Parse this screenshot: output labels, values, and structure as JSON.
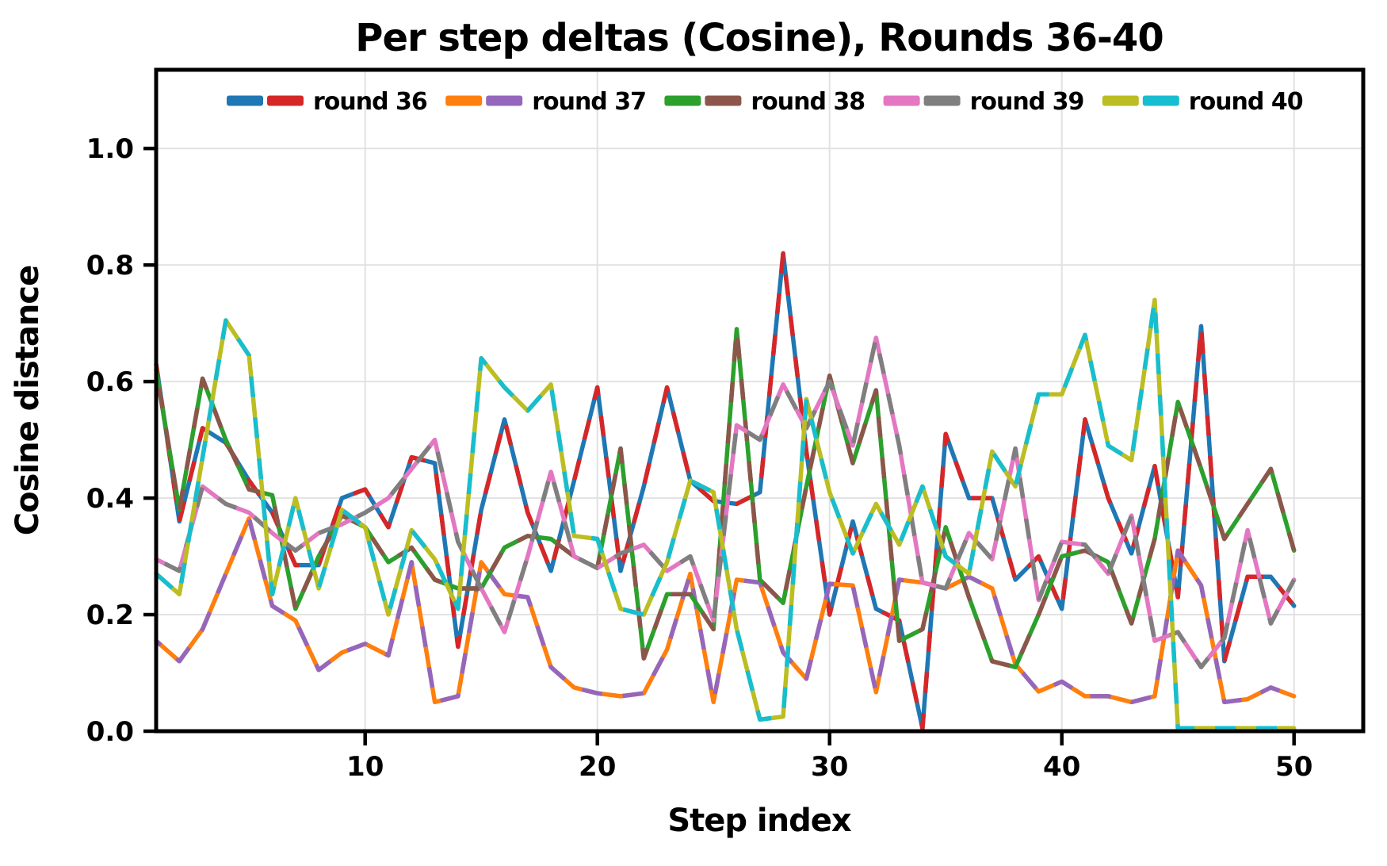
{
  "page": {
    "background_color": "#ffffff",
    "text_color": "#000000",
    "grid_color": "#e2e2e2",
    "spine_color": "#000000"
  },
  "chart_data": {
    "type": "line",
    "title": "Per step deltas (Cosine), Rounds 36-40",
    "xlabel": "Step index",
    "ylabel": "Cosine distance",
    "x_ticks": [
      10,
      20,
      30,
      40,
      50
    ],
    "y_ticks": [
      "0.0",
      "0.2",
      "0.4",
      "0.6",
      "0.8",
      "1.0"
    ],
    "y_tick_values": [
      0.0,
      0.2,
      0.4,
      0.6,
      0.8,
      1.0
    ],
    "xlim": [
      1,
      53
    ],
    "ylim": [
      0,
      1.135
    ],
    "grid": true,
    "legend_position": "upper center",
    "x_start": 1,
    "x_step": 1,
    "series": [
      {
        "name": "round 36",
        "colors": [
          "#1f77b4",
          "#d62728"
        ],
        "values": [
          0.63,
          0.36,
          0.52,
          0.495,
          0.43,
          0.375,
          0.285,
          0.285,
          0.4,
          0.415,
          0.35,
          0.47,
          0.46,
          0.145,
          0.38,
          0.535,
          0.375,
          0.275,
          0.43,
          0.59,
          0.275,
          0.42,
          0.59,
          0.43,
          0.395,
          0.39,
          0.41,
          0.82,
          0.48,
          0.2,
          0.36,
          0.21,
          0.19,
          0.005,
          0.51,
          0.4,
          0.4,
          0.26,
          0.3,
          0.21,
          0.535,
          0.4,
          0.305,
          0.455,
          0.23,
          0.695,
          0.12,
          0.265,
          0.265,
          0.215
        ]
      },
      {
        "name": "round 37",
        "colors": [
          "#ff7f0e",
          "#9467bd"
        ],
        "values": [
          0.155,
          0.12,
          0.175,
          0.27,
          0.365,
          0.215,
          0.19,
          0.105,
          0.135,
          0.15,
          0.13,
          0.29,
          0.05,
          0.06,
          0.29,
          0.235,
          0.23,
          0.11,
          0.075,
          0.065,
          0.06,
          0.065,
          0.14,
          0.27,
          0.05,
          0.26,
          0.255,
          0.135,
          0.09,
          0.253,
          0.25,
          0.067,
          0.26,
          0.255,
          0.245,
          0.265,
          0.245,
          0.115,
          0.068,
          0.085,
          0.06,
          0.06,
          0.05,
          0.06,
          0.31,
          0.25,
          0.05,
          0.055,
          0.075,
          0.06
        ]
      },
      {
        "name": "round 38",
        "colors": [
          "#2ca02c",
          "#8c564b"
        ],
        "values": [
          0.62,
          0.38,
          0.605,
          0.5,
          0.415,
          0.405,
          0.21,
          0.3,
          0.37,
          0.35,
          0.29,
          0.315,
          0.26,
          0.245,
          0.245,
          0.315,
          0.335,
          0.33,
          0.3,
          0.28,
          0.485,
          0.125,
          0.235,
          0.235,
          0.175,
          0.69,
          0.26,
          0.22,
          0.42,
          0.61,
          0.46,
          0.585,
          0.155,
          0.175,
          0.35,
          0.23,
          0.12,
          0.11,
          0.2,
          0.3,
          0.31,
          0.29,
          0.185,
          0.33,
          0.565,
          0.45,
          0.33,
          0.39,
          0.45,
          0.31
        ]
      },
      {
        "name": "round 39",
        "colors": [
          "#e377c2",
          "#7f7f7f"
        ],
        "values": [
          0.295,
          0.275,
          0.42,
          0.39,
          0.375,
          0.34,
          0.31,
          0.34,
          0.355,
          0.375,
          0.4,
          0.45,
          0.5,
          0.325,
          0.245,
          0.17,
          0.3,
          0.445,
          0.3,
          0.28,
          0.305,
          0.32,
          0.275,
          0.3,
          0.19,
          0.525,
          0.5,
          0.595,
          0.52,
          0.6,
          0.49,
          0.675,
          0.49,
          0.255,
          0.245,
          0.34,
          0.295,
          0.485,
          0.225,
          0.325,
          0.32,
          0.27,
          0.37,
          0.155,
          0.17,
          0.11,
          0.16,
          0.345,
          0.185,
          0.26
        ]
      },
      {
        "name": "round 40",
        "colors": [
          "#bcbd22",
          "#17becf"
        ],
        "values": [
          0.27,
          0.235,
          0.47,
          0.705,
          0.645,
          0.235,
          0.4,
          0.245,
          0.38,
          0.35,
          0.2,
          0.345,
          0.295,
          0.21,
          0.64,
          0.59,
          0.55,
          0.595,
          0.335,
          0.33,
          0.21,
          0.2,
          0.29,
          0.43,
          0.41,
          0.175,
          0.02,
          0.025,
          0.57,
          0.41,
          0.305,
          0.39,
          0.32,
          0.42,
          0.3,
          0.27,
          0.48,
          0.42,
          0.578,
          0.578,
          0.68,
          0.49,
          0.465,
          0.74,
          0.005,
          0.005,
          0.005,
          0.005,
          0.005,
          0.005
        ]
      }
    ]
  }
}
